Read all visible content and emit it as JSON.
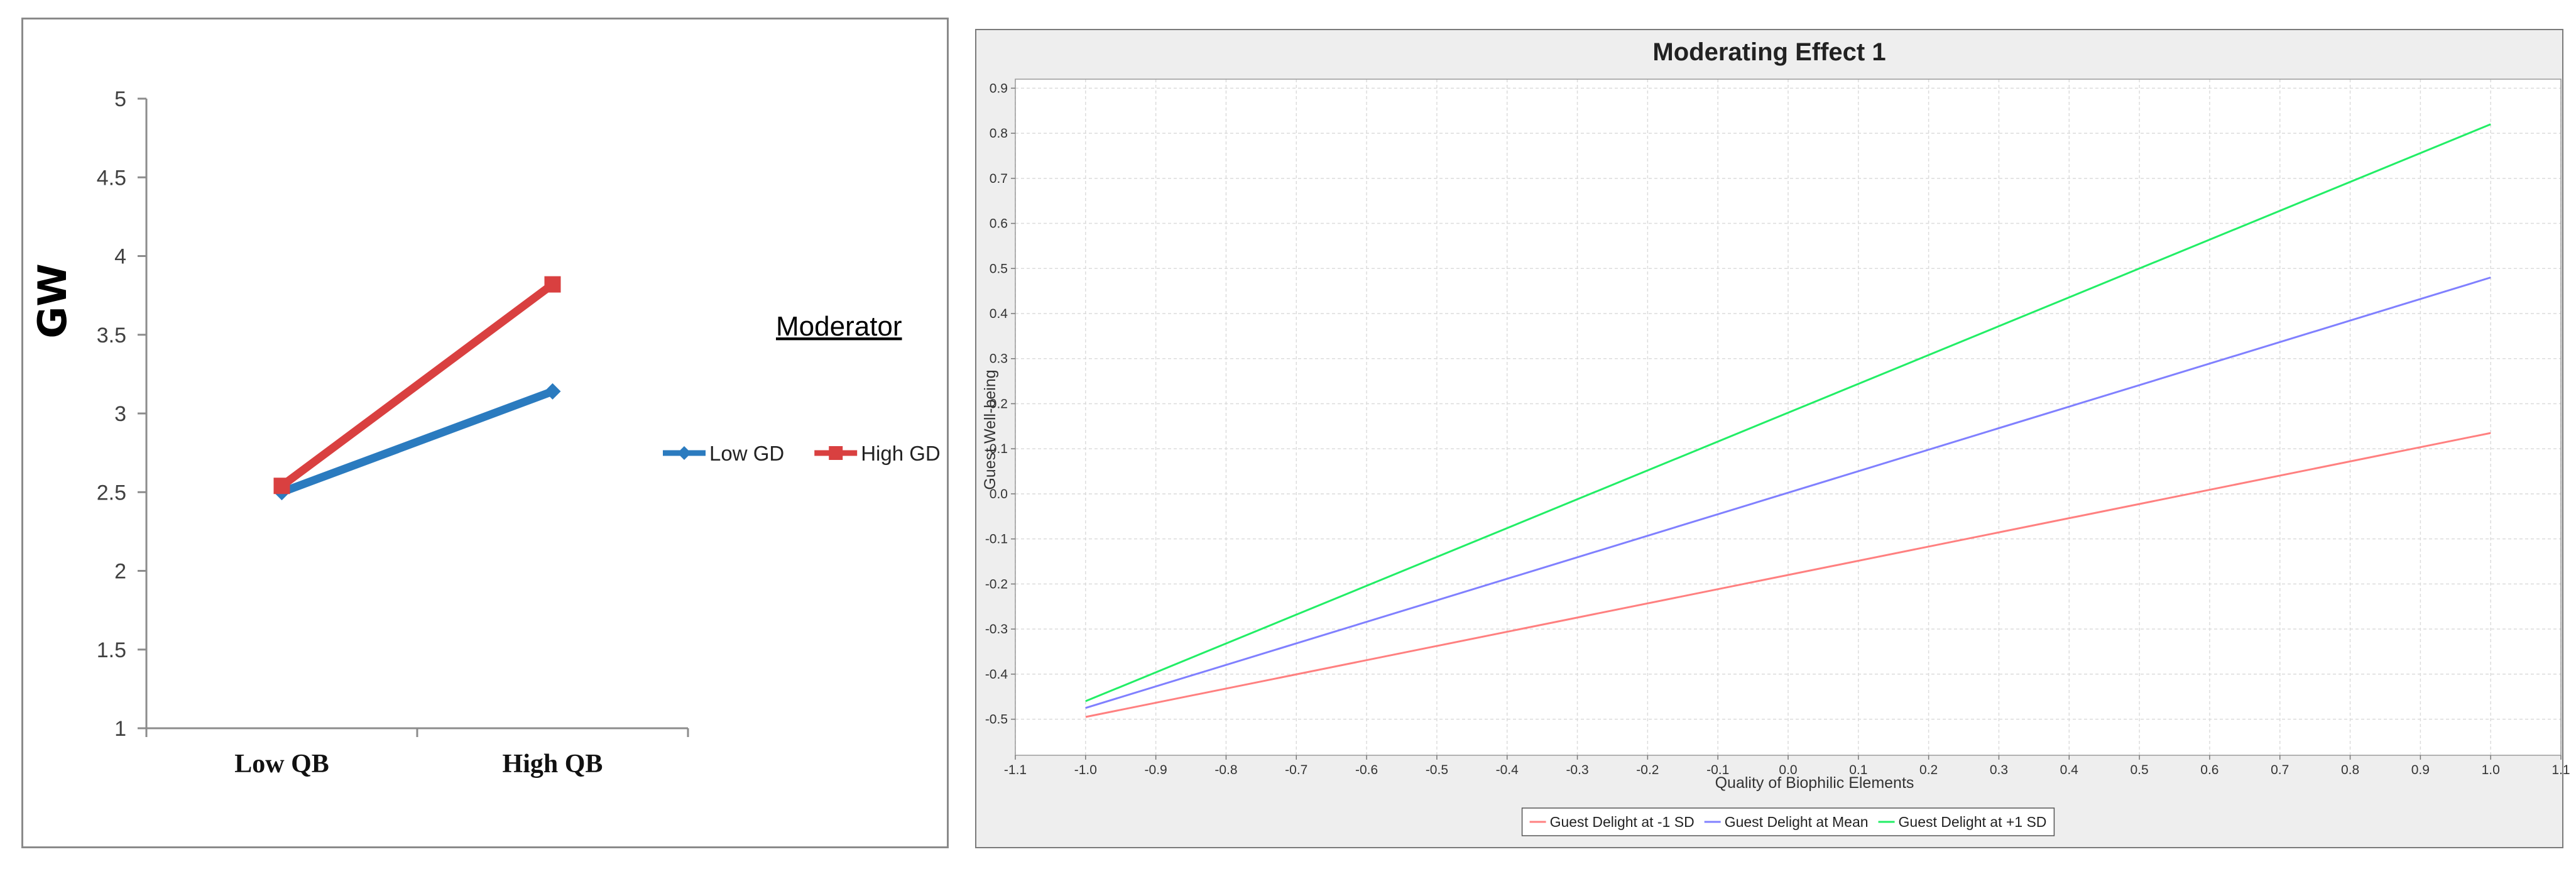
{
  "chart_data": [
    {
      "type": "line",
      "categories": [
        "Low QB",
        "High QB"
      ],
      "series": [
        {
          "name": "Low GD",
          "values": [
            2.5,
            3.14
          ],
          "color": "#2b7bbf",
          "marker": "diamond"
        },
        {
          "name": "High GD",
          "values": [
            2.54,
            3.82
          ],
          "color": "#d94040",
          "marker": "square"
        }
      ],
      "ylabel": "GW",
      "ylim": [
        1,
        5
      ],
      "yticks": [
        "1",
        "1.5",
        "2",
        "2.5",
        "3",
        "3.5",
        "4",
        "4.5",
        "5"
      ],
      "legend_title": "Moderator",
      "legend_position": "right",
      "grid": false
    },
    {
      "type": "line",
      "title": "Moderating Effect 1",
      "xlabel": "Quality of Biophilic Elements",
      "ylabel": "Guest Well-being",
      "xlim": [
        -1.1,
        1.1
      ],
      "ylim": [
        -0.58,
        0.92
      ],
      "xticks": [
        "-1.1",
        "-1.0",
        "-0.9",
        "-0.8",
        "-0.7",
        "-0.6",
        "-0.5",
        "-0.4",
        "-0.3",
        "-0.2",
        "-0.1",
        "0.0",
        "0.1",
        "0.2",
        "0.3",
        "0.4",
        "0.5",
        "0.6",
        "0.7",
        "0.8",
        "0.9",
        "1.0",
        "1.1"
      ],
      "yticks": [
        "-0.5",
        "-0.4",
        "-0.3",
        "-0.2",
        "-0.1",
        "0.0",
        "0.1",
        "0.2",
        "0.3",
        "0.4",
        "0.5",
        "0.6",
        "0.7",
        "0.8",
        "0.9"
      ],
      "series": [
        {
          "name": "Guest Delight at -1 SD",
          "x": [
            -1.0,
            1.0
          ],
          "y": [
            -0.495,
            0.135
          ],
          "color": "#ff8080"
        },
        {
          "name": "Guest Delight at Mean",
          "x": [
            -1.0,
            1.0
          ],
          "y": [
            -0.475,
            0.48
          ],
          "color": "#8080ff"
        },
        {
          "name": "Guest Delight at +1 SD",
          "x": [
            -1.0,
            1.0
          ],
          "y": [
            -0.46,
            0.82
          ],
          "color": "#22ee66"
        }
      ],
      "legend_position": "bottom-center",
      "grid": true
    }
  ]
}
